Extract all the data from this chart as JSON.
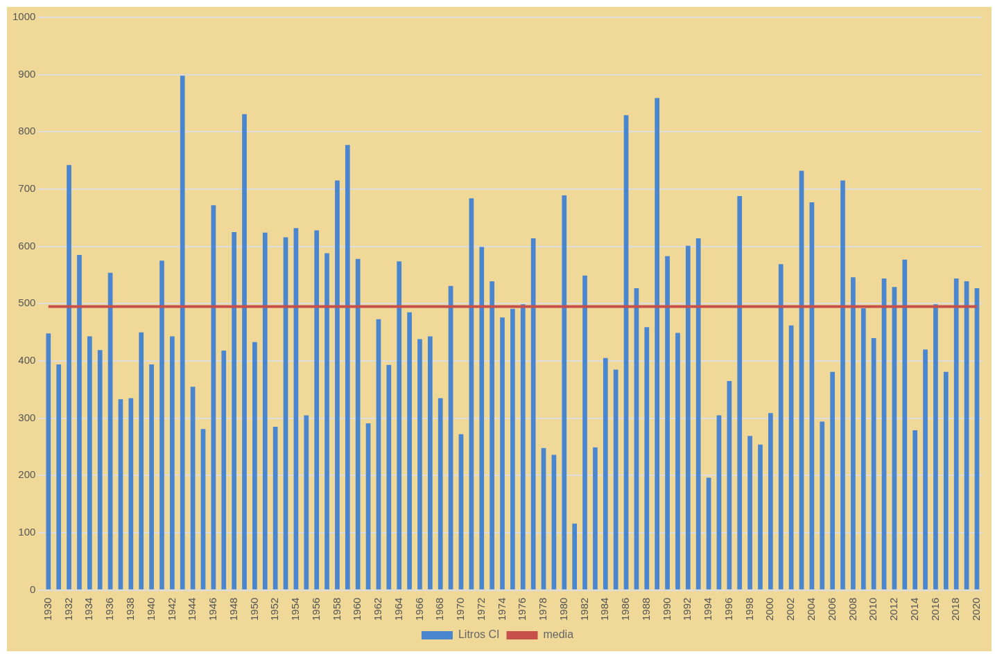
{
  "chart_data": {
    "type": "bar",
    "categories": [
      "1930",
      null,
      "1932",
      null,
      "1934",
      null,
      "1936",
      null,
      "1938",
      null,
      "1940",
      null,
      "1942",
      null,
      "1944",
      null,
      "1946",
      null,
      "1948",
      null,
      "1950",
      null,
      "1952",
      null,
      "1954",
      null,
      "1956",
      null,
      "1958",
      null,
      "1960",
      null,
      "1962",
      null,
      "1964",
      null,
      "1966",
      null,
      "1968",
      null,
      "1970",
      null,
      "1972",
      null,
      "1974",
      null,
      "1976",
      null,
      "1978",
      null,
      "1980",
      null,
      "1982",
      null,
      "1984",
      null,
      "1986",
      null,
      "1988",
      null,
      "1990",
      null,
      "1992",
      null,
      "1994",
      null,
      "1996",
      null,
      "1998",
      null,
      "2000",
      null,
      "2002",
      null,
      "2004",
      null,
      "2006",
      null,
      "2008",
      null,
      "2010",
      null,
      "2012",
      null,
      "2014",
      null,
      "2016",
      null,
      "2018",
      null,
      "2020"
    ],
    "series": [
      {
        "name": "Litros CI",
        "color": "#4a86cf",
        "values": [
          448,
          394,
          742,
          585,
          443,
          419,
          554,
          333,
          335,
          450,
          394,
          575,
          443,
          898,
          355,
          281,
          672,
          418,
          625,
          831,
          433,
          624,
          285,
          616,
          632,
          305,
          628,
          588,
          715,
          777,
          578,
          291,
          473,
          393,
          574,
          485,
          438,
          443,
          335,
          531,
          272,
          684,
          599,
          539,
          476,
          491,
          499,
          614,
          248,
          236,
          689,
          116,
          549,
          249,
          405,
          385,
          829,
          527,
          459,
          859,
          583,
          449,
          601,
          614,
          196,
          305,
          365,
          688,
          269,
          254,
          309,
          569,
          462,
          732,
          677,
          294,
          381,
          715,
          546,
          492,
          440,
          544,
          529,
          577,
          279,
          420,
          499,
          381,
          544,
          539,
          527
        ]
      },
      {
        "name": "media",
        "type": "line",
        "color": "#c8504b",
        "values": [
          495,
          495,
          495,
          495,
          495,
          495,
          495,
          495,
          495,
          495,
          495,
          495,
          495,
          495,
          495,
          495,
          495,
          495,
          495,
          495,
          495,
          495,
          495,
          495,
          495,
          495,
          495,
          495,
          495,
          495,
          495,
          495,
          495,
          495,
          495,
          495,
          495,
          495,
          495,
          495,
          495,
          495,
          495,
          495,
          495,
          495,
          495,
          495,
          495,
          495,
          495,
          495,
          495,
          495,
          495,
          495,
          495,
          495,
          495,
          495,
          495,
          495,
          495,
          495,
          495,
          495,
          495,
          495,
          495,
          495,
          495,
          495,
          495,
          495,
          495,
          495,
          495,
          495,
          495,
          495,
          495,
          495,
          495,
          495,
          495,
          495,
          495,
          495,
          495,
          495,
          495
        ]
      }
    ],
    "ylim": [
      0,
      1000
    ],
    "yticks": [
      0,
      100,
      200,
      300,
      400,
      500,
      600,
      700,
      800,
      900,
      1000
    ],
    "grid": "y",
    "legend": "bottom",
    "marker": "none",
    "line_style": "solid"
  }
}
